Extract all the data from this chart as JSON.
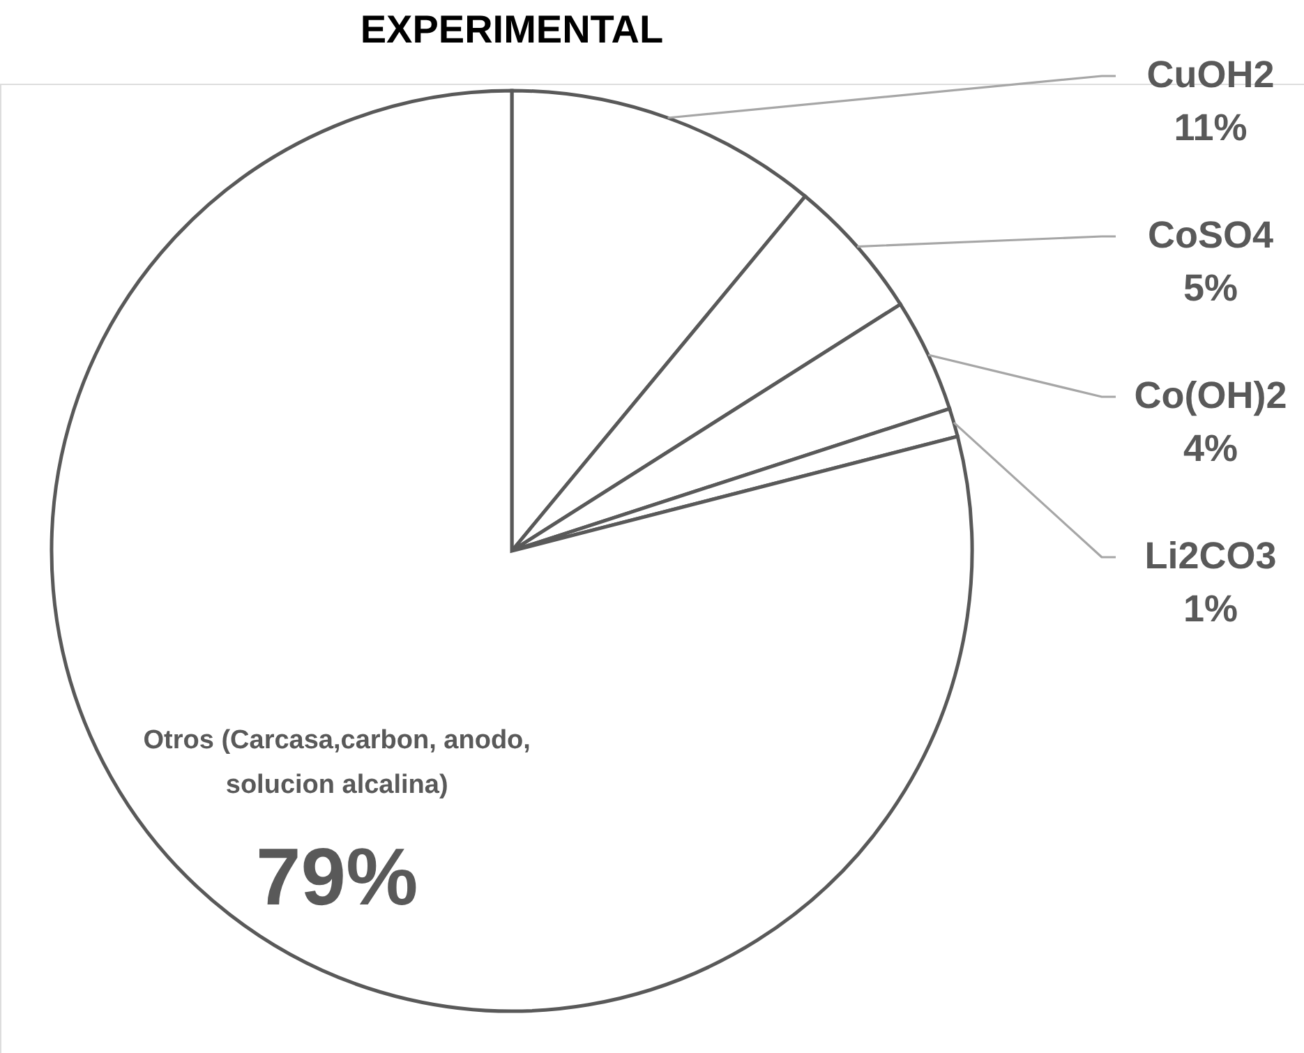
{
  "chart_data": {
    "type": "pie",
    "title": "EXPERIMENTAL",
    "categories": [
      "CuOH2",
      "CoSO4",
      "Co(OH)2",
      "Li2CO3",
      "Otros (Carcasa,carbon, anodo, solucion alcalina)"
    ],
    "values": [
      11,
      5,
      4,
      1,
      79
    ],
    "colors": [
      "#ffffff",
      "#ffffff",
      "#ffffff",
      "#ffffff",
      "#ffffff"
    ],
    "value_labels": [
      "11%",
      "5%",
      "4%",
      "1%",
      "79%"
    ]
  }
}
